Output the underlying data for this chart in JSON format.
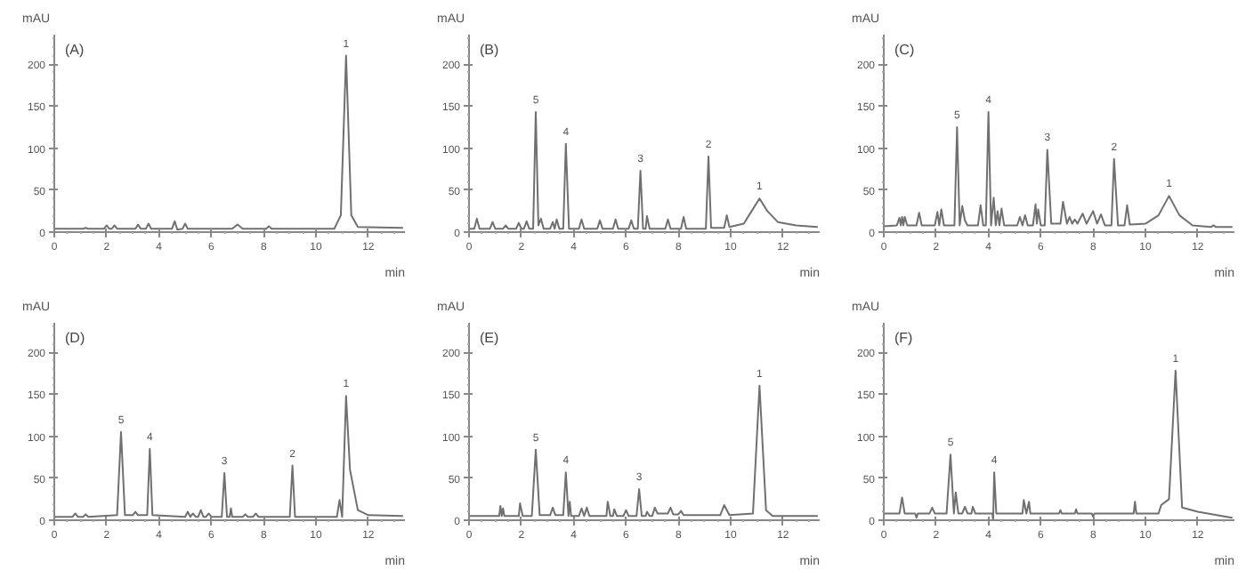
{
  "chart_data": [
    {
      "type": "line",
      "title": "(A)",
      "xlabel": "min",
      "ylabel": "mAU",
      "color": "#707070",
      "xlim": [
        0,
        13.4
      ],
      "ylim": [
        0,
        235
      ],
      "xticks": [
        0,
        2,
        4,
        6,
        8,
        10,
        12
      ],
      "yticks": [
        0,
        50,
        100,
        150,
        200
      ],
      "x": [
        0,
        1.1,
        1.2,
        1.3,
        1.9,
        2.0,
        2.1,
        2.2,
        2.3,
        2.4,
        3.1,
        3.2,
        3.3,
        3.5,
        3.6,
        3.7,
        4.5,
        4.6,
        4.7,
        4.9,
        5.0,
        5.1,
        6.8,
        7.0,
        7.2,
        8.1,
        8.2,
        8.3,
        10.7,
        10.95,
        11.15,
        11.35,
        11.6,
        13.3
      ],
      "values": [
        4,
        4,
        5,
        4,
        4,
        8,
        4,
        4,
        8,
        4,
        4,
        9,
        4,
        4,
        10,
        4,
        4,
        13,
        3,
        4,
        10,
        4,
        4,
        9,
        4,
        4,
        7,
        4,
        4,
        20,
        210,
        20,
        6,
        5
      ],
      "annotations": [
        {
          "text": "1",
          "x": 11.15,
          "y": 210
        }
      ]
    },
    {
      "type": "line",
      "title": "(B)",
      "xlabel": "min",
      "ylabel": "mAU",
      "color": "#707070",
      "xlim": [
        0,
        13.4
      ],
      "ylim": [
        0,
        235
      ],
      "xticks": [
        0,
        2,
        4,
        6,
        8,
        10,
        12
      ],
      "yticks": [
        0,
        50,
        100,
        150,
        200
      ],
      "x": [
        0,
        0.2,
        0.3,
        0.4,
        0.8,
        0.9,
        1.0,
        1.3,
        1.4,
        1.5,
        1.8,
        1.9,
        2.0,
        2.1,
        2.2,
        2.3,
        2.45,
        2.55,
        2.65,
        2.75,
        2.85,
        3.1,
        3.2,
        3.27,
        3.35,
        3.45,
        3.6,
        3.7,
        3.82,
        4.2,
        4.3,
        4.4,
        4.9,
        5.0,
        5.1,
        5.5,
        5.6,
        5.7,
        6.1,
        6.2,
        6.3,
        6.45,
        6.55,
        6.65,
        6.75,
        6.8,
        6.9,
        7.5,
        7.6,
        7.7,
        8.1,
        8.2,
        8.3,
        9.05,
        9.15,
        9.25,
        9.75,
        9.85,
        9.95,
        10.5,
        10.8,
        11.1,
        11.4,
        11.8,
        12.5,
        13.3
      ],
      "values": [
        4,
        4,
        16,
        4,
        4,
        12,
        4,
        4,
        8,
        4,
        4,
        11,
        4,
        4,
        13,
        4,
        4,
        143,
        8,
        16,
        4,
        4,
        12,
        4,
        15,
        4,
        4,
        105,
        4,
        4,
        15,
        4,
        4,
        14,
        4,
        4,
        15,
        4,
        4,
        14,
        4,
        4,
        73,
        4,
        4,
        19,
        4,
        4,
        15,
        4,
        4,
        18,
        4,
        4,
        90,
        5,
        5,
        20,
        6,
        10,
        25,
        40,
        25,
        12,
        8,
        6
      ],
      "annotations": [
        {
          "text": "5",
          "x": 2.55,
          "y": 143
        },
        {
          "text": "4",
          "x": 3.7,
          "y": 105
        },
        {
          "text": "3",
          "x": 6.55,
          "y": 73
        },
        {
          "text": "2",
          "x": 9.15,
          "y": 90
        },
        {
          "text": "1",
          "x": 11.1,
          "y": 40
        }
      ]
    },
    {
      "type": "line",
      "title": "(C)",
      "xlabel": "min",
      "ylabel": "mAU",
      "color": "#707070",
      "xlim": [
        0,
        13.4
      ],
      "ylim": [
        0,
        235
      ],
      "xticks": [
        0,
        2,
        4,
        6,
        8,
        10,
        12
      ],
      "yticks": [
        0,
        50,
        100,
        150,
        200
      ],
      "x": [
        0,
        0.5,
        0.6,
        0.65,
        0.7,
        0.75,
        0.8,
        0.9,
        1.25,
        1.35,
        1.45,
        1.95,
        2.05,
        2.12,
        2.2,
        2.3,
        2.7,
        2.8,
        2.9,
        3.0,
        3.1,
        3.2,
        3.6,
        3.7,
        3.8,
        3.9,
        4.0,
        4.1,
        4.2,
        4.28,
        4.35,
        4.42,
        4.5,
        4.6,
        5.1,
        5.2,
        5.3,
        5.4,
        5.5,
        5.7,
        5.8,
        5.85,
        5.9,
        6.0,
        6.15,
        6.25,
        6.4,
        6.75,
        6.85,
        7.0,
        7.1,
        7.2,
        7.3,
        7.4,
        7.6,
        7.75,
        8.0,
        8.15,
        8.3,
        8.45,
        8.7,
        8.8,
        8.95,
        9.2,
        9.3,
        9.4,
        10.0,
        10.5,
        10.9,
        11.3,
        11.8,
        12.5,
        12.6,
        12.7,
        13.3
      ],
      "values": [
        7,
        8,
        17,
        8,
        18,
        8,
        18,
        8,
        8,
        23,
        8,
        8,
        24,
        8,
        27,
        8,
        8,
        125,
        8,
        31,
        14,
        8,
        8,
        32,
        8,
        8,
        143,
        8,
        41,
        8,
        25,
        8,
        28,
        8,
        8,
        18,
        8,
        20,
        8,
        8,
        33,
        10,
        27,
        8,
        8,
        98,
        10,
        10,
        36,
        10,
        18,
        10,
        15,
        10,
        22,
        10,
        25,
        10,
        21,
        8,
        8,
        87,
        8,
        8,
        32,
        9,
        10,
        20,
        43,
        20,
        8,
        6,
        8,
        6,
        6
      ],
      "annotations": [
        {
          "text": "5",
          "x": 2.8,
          "y": 125
        },
        {
          "text": "4",
          "x": 4.0,
          "y": 143
        },
        {
          "text": "3",
          "x": 6.25,
          "y": 98
        },
        {
          "text": "2",
          "x": 8.8,
          "y": 87
        },
        {
          "text": "1",
          "x": 10.9,
          "y": 43
        }
      ]
    },
    {
      "type": "line",
      "title": "(D)",
      "xlabel": "min",
      "ylabel": "mAU",
      "color": "#707070",
      "xlim": [
        0,
        13.4
      ],
      "ylim": [
        0,
        235
      ],
      "xticks": [
        0,
        2,
        4,
        6,
        8,
        10,
        12
      ],
      "yticks": [
        0,
        50,
        100,
        150,
        200
      ],
      "x": [
        0,
        0.7,
        0.8,
        0.9,
        1.1,
        1.2,
        1.3,
        2.4,
        2.55,
        2.7,
        3.0,
        3.1,
        3.2,
        3.55,
        3.65,
        3.75,
        5.0,
        5.1,
        5.2,
        5.3,
        5.4,
        5.5,
        5.6,
        5.7,
        5.8,
        5.9,
        6.0,
        6.4,
        6.5,
        6.6,
        6.7,
        6.75,
        6.8,
        7.2,
        7.3,
        7.4,
        7.6,
        7.7,
        7.8,
        9.0,
        9.1,
        9.2,
        10.8,
        10.9,
        11.0,
        11.15,
        11.3,
        11.6,
        12.0,
        13.3
      ],
      "values": [
        4,
        4,
        8,
        4,
        4,
        7,
        4,
        6,
        105,
        6,
        6,
        10,
        6,
        6,
        85,
        6,
        4,
        10,
        4,
        8,
        4,
        4,
        12,
        4,
        4,
        8,
        4,
        4,
        56,
        4,
        4,
        14,
        4,
        4,
        7,
        4,
        4,
        8,
        4,
        4,
        65,
        4,
        4,
        24,
        4,
        148,
        60,
        12,
        6,
        5
      ],
      "annotations": [
        {
          "text": "5",
          "x": 2.55,
          "y": 105
        },
        {
          "text": "4",
          "x": 3.65,
          "y": 85
        },
        {
          "text": "3",
          "x": 6.5,
          "y": 56
        },
        {
          "text": "2",
          "x": 9.1,
          "y": 65
        },
        {
          "text": "1",
          "x": 11.15,
          "y": 148
        }
      ]
    },
    {
      "type": "line",
      "title": "(E)",
      "xlabel": "min",
      "ylabel": "mAU",
      "color": "#707070",
      "xlim": [
        0,
        13.4
      ],
      "ylim": [
        0,
        235
      ],
      "xticks": [
        0,
        2,
        4,
        6,
        8,
        10,
        12
      ],
      "yticks": [
        0,
        50,
        100,
        150,
        200
      ],
      "x": [
        0,
        1.15,
        1.2,
        1.25,
        1.3,
        1.35,
        1.9,
        1.95,
        2.05,
        2.4,
        2.55,
        2.7,
        3.1,
        3.2,
        3.3,
        3.6,
        3.7,
        3.8,
        3.85,
        3.9,
        4.2,
        4.3,
        4.4,
        4.5,
        4.6,
        5.25,
        5.3,
        5.4,
        5.5,
        5.55,
        5.65,
        5.9,
        6.0,
        6.1,
        6.4,
        6.5,
        6.6,
        6.75,
        6.8,
        6.9,
        7.0,
        7.1,
        7.2,
        7.6,
        7.7,
        7.8,
        8.0,
        8.1,
        8.2,
        9.6,
        9.75,
        9.95,
        10.85,
        11.1,
        11.35,
        11.6,
        13.3
      ],
      "values": [
        5,
        5,
        17,
        5,
        14,
        5,
        5,
        20,
        5,
        5,
        84,
        6,
        6,
        15,
        6,
        6,
        57,
        5,
        22,
        5,
        5,
        14,
        5,
        15,
        5,
        5,
        22,
        5,
        5,
        13,
        5,
        5,
        12,
        5,
        5,
        37,
        5,
        5,
        10,
        5,
        5,
        15,
        8,
        8,
        15,
        7,
        7,
        11,
        6,
        6,
        18,
        6,
        8,
        160,
        12,
        5,
        5
      ],
      "annotations": [
        {
          "text": "5",
          "x": 2.55,
          "y": 84
        },
        {
          "text": "4",
          "x": 3.7,
          "y": 57
        },
        {
          "text": "3",
          "x": 6.5,
          "y": 37
        },
        {
          "text": "1",
          "x": 11.1,
          "y": 160
        }
      ]
    },
    {
      "type": "line",
      "title": "(F)",
      "xlabel": "min",
      "ylabel": "mAU",
      "color": "#707070",
      "xlim": [
        0,
        13.4
      ],
      "ylim": [
        0,
        235
      ],
      "xticks": [
        0,
        2,
        4,
        6,
        8,
        10,
        12
      ],
      "yticks": [
        0,
        50,
        100,
        150,
        200
      ],
      "x": [
        0,
        0.6,
        0.7,
        0.8,
        1.2,
        1.25,
        1.3,
        1.75,
        1.85,
        1.95,
        2.4,
        2.55,
        2.68,
        2.75,
        2.85,
        3.0,
        3.1,
        3.2,
        3.35,
        3.4,
        3.5,
        4.15,
        4.18,
        4.22,
        4.3,
        5.3,
        5.35,
        5.45,
        5.55,
        5.6,
        6.7,
        6.75,
        6.8,
        7.3,
        7.35,
        7.4,
        7.95,
        8.0,
        8.05,
        9.55,
        9.6,
        9.65,
        10.5,
        10.6,
        10.9,
        11.15,
        11.4,
        12.0,
        13.3
      ],
      "values": [
        8,
        8,
        27,
        8,
        8,
        3,
        8,
        8,
        15,
        8,
        8,
        78,
        8,
        33,
        8,
        8,
        16,
        8,
        8,
        16,
        8,
        8,
        0,
        57,
        8,
        8,
        24,
        8,
        22,
        8,
        8,
        12,
        8,
        8,
        13,
        8,
        8,
        4,
        8,
        8,
        22,
        8,
        8,
        18,
        25,
        178,
        15,
        10,
        3
      ],
      "annotations": [
        {
          "text": "5",
          "x": 2.55,
          "y": 78
        },
        {
          "text": "4",
          "x": 4.22,
          "y": 57
        },
        {
          "text": "1",
          "x": 11.15,
          "y": 178
        }
      ]
    }
  ]
}
